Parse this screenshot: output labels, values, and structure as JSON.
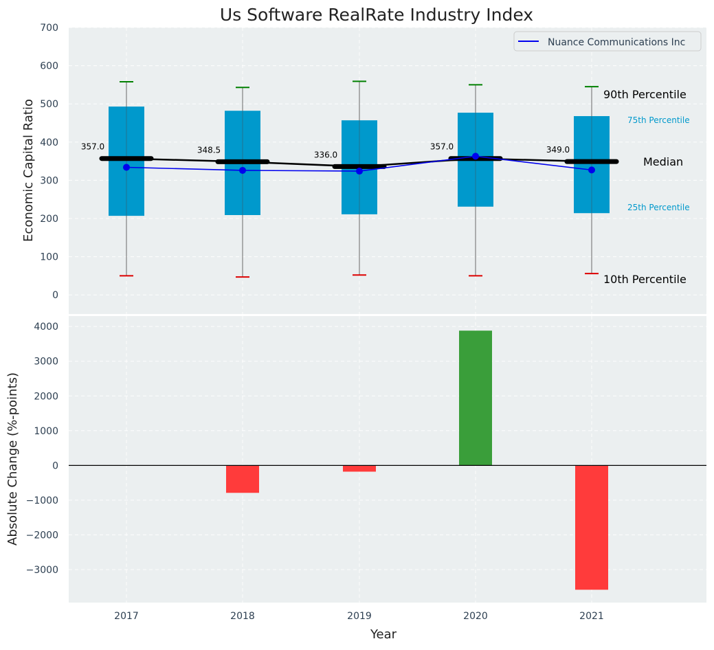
{
  "chart_data": {
    "title": "Us Software RealRate Industry Index",
    "xlabel": "Year",
    "categories": [
      "2017",
      "2018",
      "2019",
      "2020",
      "2021"
    ],
    "grid": true,
    "background_color": "#ebeff0",
    "top_panel": {
      "type": "boxplot",
      "ylabel": "Economic Capital Ratio",
      "ylim": [
        -50,
        700
      ],
      "yticks": [
        0,
        100,
        200,
        300,
        400,
        500,
        600,
        700
      ],
      "box_color": "#0099cc",
      "p10_color": "#dd0000",
      "p90_color": "#008000",
      "median_color": "#000000",
      "boxes": [
        {
          "p10": 50,
          "p25": 207,
          "median": 357.0,
          "p75": 493,
          "p90": 558,
          "median_label": "357.0"
        },
        {
          "p10": 47,
          "p25": 209,
          "median": 348.5,
          "p75": 482,
          "p90": 543,
          "median_label": "348.5"
        },
        {
          "p10": 52,
          "p25": 211,
          "median": 336.0,
          "p75": 457,
          "p90": 559,
          "median_label": "336.0"
        },
        {
          "p10": 50,
          "p25": 231,
          "median": 357.0,
          "p75": 477,
          "p90": 550,
          "median_label": "357.0"
        },
        {
          "p10": 56,
          "p25": 214,
          "median": 349.0,
          "p75": 468,
          "p90": 545,
          "median_label": "349.0"
        }
      ],
      "series": [
        {
          "name": "Nuance Communications Inc",
          "color": "#0000ee",
          "values": [
            334,
            326,
            324,
            363,
            327
          ]
        }
      ],
      "legend_position": "top-right",
      "annotations": {
        "p90": "90th Percentile",
        "p75": "75th Percentile",
        "median": "Median",
        "p25": "25th Percentile",
        "p10": "10th Percentile"
      }
    },
    "bottom_panel": {
      "type": "bar",
      "ylabel": "Absolute Change (%-points)",
      "ylim": [
        -3950,
        4300
      ],
      "yticks": [
        -3000,
        -2000,
        -1000,
        0,
        1000,
        2000,
        3000,
        4000
      ],
      "ytick_labels": [
        "−3000",
        "−2000",
        "−1000",
        "0",
        "1000",
        "2000",
        "3000",
        "4000"
      ],
      "positive_color": "#3a9e3a",
      "negative_color": "#ff3b3b",
      "values": [
        0,
        -790,
        -180,
        3880,
        -3580
      ]
    }
  }
}
